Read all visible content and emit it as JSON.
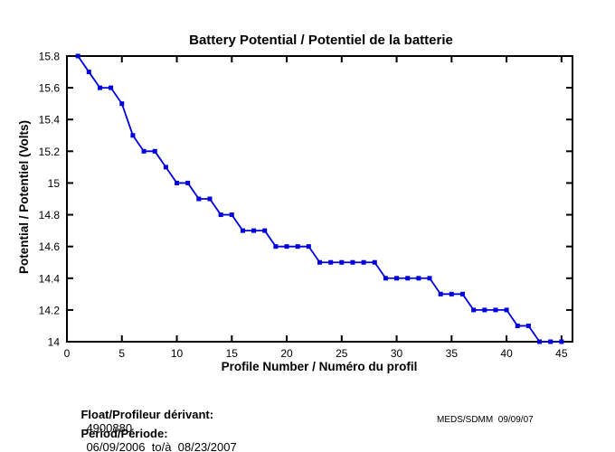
{
  "chart_data": {
    "type": "line",
    "title": "Battery Potential / Potentiel de la batterie",
    "xlabel": "Profile Number / Numéro du profil",
    "ylabel": "Potential / Potentiel (Volts)",
    "xlim": [
      0,
      46
    ],
    "ylim": [
      14,
      15.8
    ],
    "xticks": [
      0,
      5,
      10,
      15,
      20,
      25,
      30,
      35,
      40,
      45
    ],
    "xtick_labels": [
      "0",
      "5",
      "10",
      "15",
      "20",
      "25",
      "30",
      "35",
      "40",
      "45"
    ],
    "yticks": [
      14,
      14.2,
      14.4,
      14.6,
      14.8,
      15,
      15.2,
      15.4,
      15.6,
      15.8
    ],
    "ytick_labels": [
      "14",
      "14.2",
      "14.4",
      "14.6",
      "14.8",
      "15",
      "15.2",
      "15.4",
      "15.6",
      "15.8"
    ],
    "grid": false,
    "legend": null,
    "line_color": "#0000DD",
    "marker": "square",
    "x": [
      1,
      2,
      3,
      4,
      5,
      6,
      7,
      8,
      9,
      10,
      11,
      12,
      13,
      14,
      15,
      16,
      17,
      18,
      19,
      20,
      21,
      22,
      23,
      24,
      25,
      26,
      27,
      28,
      29,
      30,
      31,
      32,
      33,
      34,
      35,
      36,
      37,
      38,
      39,
      40,
      41,
      42,
      43,
      44,
      45
    ],
    "y": [
      15.8,
      15.7,
      15.6,
      15.6,
      15.5,
      15.3,
      15.2,
      15.2,
      15.1,
      15.0,
      15.0,
      14.9,
      14.9,
      14.8,
      14.8,
      14.7,
      14.7,
      14.7,
      14.6,
      14.6,
      14.6,
      14.6,
      14.5,
      14.5,
      14.5,
      14.5,
      14.5,
      14.5,
      14.4,
      14.4,
      14.4,
      14.4,
      14.4,
      14.3,
      14.3,
      14.3,
      14.2,
      14.2,
      14.2,
      14.2,
      14.1,
      14.1,
      14.0,
      14.0,
      14.0
    ]
  },
  "footer": {
    "float_label": "Float/Profileur dérivant:",
    "float_value": "4900880",
    "period_label": "Period/Période:",
    "period_value": "06/09/2006  to/à  08/23/2007",
    "credit": "MEDS/SDMM  09/09/07"
  }
}
